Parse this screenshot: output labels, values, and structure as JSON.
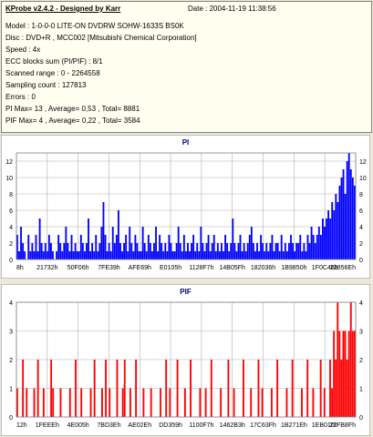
{
  "info": {
    "title": "KProbe v2.4.2 - Designed by Karr",
    "date": "Date : 2004-11-19 11:38:56",
    "lines": [
      "Model : 1-0-0-0 LITE-ON DVDRW SOHW-1633S BS0K",
      "Disc : DVD+R , MCC002 [Mitsubishi Chemical Corporation]",
      "Speed : 4x",
      "ECC blocks sum (PI/PIF) : 8/1",
      "Scanned range : 0 - 2264558",
      "Sampling count : 127813",
      "Errors : 0",
      "PI Max= 13 , Average= 0,53 , Total= 8881",
      "PIF Max= 4 , Average= 0,22 , Total= 3584"
    ]
  },
  "chart_data": [
    {
      "type": "bar",
      "title": "PI",
      "xlabel": "",
      "ylabel": "",
      "ylim": [
        0,
        13
      ],
      "yticks": [
        0,
        2,
        4,
        6,
        8,
        10,
        12
      ],
      "xtick_labels": [
        "8h",
        "21732h",
        "50F06h",
        "7FE39h",
        "AFE69h",
        "E0105h",
        "1128F7h",
        "14B05Fh",
        "182036h",
        "1B9850h",
        "1F0C46h",
        "22856Eh"
      ],
      "grid": true,
      "series_color": "#0000ff",
      "bins": 180,
      "values": [
        3,
        1,
        4,
        2,
        1,
        0,
        3,
        1,
        2,
        1,
        3,
        1,
        5,
        2,
        1,
        2,
        1,
        3,
        2,
        1,
        0,
        1,
        3,
        2,
        1,
        2,
        4,
        2,
        1,
        3,
        1,
        2,
        1,
        1,
        3,
        2,
        1,
        2,
        5,
        1,
        2,
        1,
        3,
        1,
        2,
        4,
        7,
        3,
        1,
        2,
        1,
        4,
        2,
        3,
        6,
        2,
        1,
        2,
        3,
        1,
        4,
        2,
        1,
        3,
        2,
        1,
        1,
        4,
        2,
        1,
        3,
        2,
        1,
        2,
        4,
        1,
        3,
        2,
        1,
        2,
        1,
        3,
        2,
        1,
        1,
        2,
        4,
        2,
        1,
        3,
        1,
        2,
        1,
        2,
        3,
        1,
        2,
        1,
        4,
        2,
        1,
        2,
        3,
        1,
        2,
        3,
        1,
        2,
        1,
        2,
        1,
        3,
        2,
        1,
        2,
        5,
        2,
        1,
        2,
        3,
        1,
        2,
        1,
        2,
        3,
        4,
        2,
        1,
        2,
        1,
        3,
        2,
        1,
        2,
        1,
        2,
        3,
        1,
        2,
        2,
        1,
        3,
        1,
        2,
        1,
        2,
        3,
        2,
        1,
        2,
        2,
        3,
        1,
        2,
        1,
        3,
        2,
        4,
        3,
        2,
        3,
        4,
        3,
        5,
        4,
        5,
        6,
        5,
        7,
        6,
        8,
        7,
        9,
        10,
        11,
        8,
        12,
        13,
        11,
        10,
        9
      ]
    },
    {
      "type": "bar",
      "title": "PIF",
      "xlabel": "",
      "ylabel": "",
      "ylim": [
        0,
        4
      ],
      "yticks": [
        0,
        1,
        2,
        3,
        4
      ],
      "xtick_labels": [
        "12h",
        "1FEEEh",
        "4E005h",
        "7BD3Eh",
        "AE02Eh",
        "DD359h",
        "1100F7h",
        "1462B3h",
        "17C63Fh",
        "1B271Eh",
        "1EB010h",
        "21FB8Fh"
      ],
      "grid": true,
      "series_color": "#ff0000",
      "bins": 180,
      "values": [
        1,
        0,
        0,
        2,
        0,
        1,
        0,
        0,
        0,
        1,
        0,
        2,
        0,
        0,
        1,
        0,
        0,
        0,
        2,
        1,
        0,
        0,
        0,
        1,
        0,
        0,
        0,
        0,
        1,
        0,
        0,
        2,
        0,
        0,
        1,
        0,
        0,
        0,
        0,
        1,
        0,
        2,
        0,
        0,
        0,
        1,
        0,
        2,
        0,
        1,
        0,
        0,
        0,
        2,
        0,
        0,
        1,
        2,
        0,
        0,
        1,
        0,
        0,
        2,
        0,
        0,
        0,
        1,
        0,
        0,
        0,
        1,
        0,
        0,
        0,
        0,
        1,
        0,
        0,
        2,
        0,
        1,
        0,
        0,
        0,
        2,
        0,
        0,
        0,
        1,
        0,
        0,
        2,
        0,
        0,
        0,
        0,
        1,
        0,
        0,
        1,
        0,
        0,
        2,
        0,
        0,
        0,
        0,
        1,
        0,
        0,
        0,
        2,
        0,
        0,
        1,
        0,
        0,
        0,
        0,
        2,
        0,
        0,
        0,
        1,
        0,
        0,
        0,
        2,
        0,
        1,
        0,
        0,
        0,
        0,
        1,
        0,
        0,
        2,
        0,
        0,
        0,
        0,
        1,
        0,
        0,
        2,
        0,
        0,
        0,
        0,
        1,
        0,
        0,
        2,
        0,
        0,
        1,
        0,
        0,
        0,
        2,
        0,
        1,
        0,
        0,
        2,
        1,
        3,
        2,
        4,
        3,
        2,
        3,
        3,
        2,
        3,
        4,
        3,
        3
      ]
    }
  ]
}
